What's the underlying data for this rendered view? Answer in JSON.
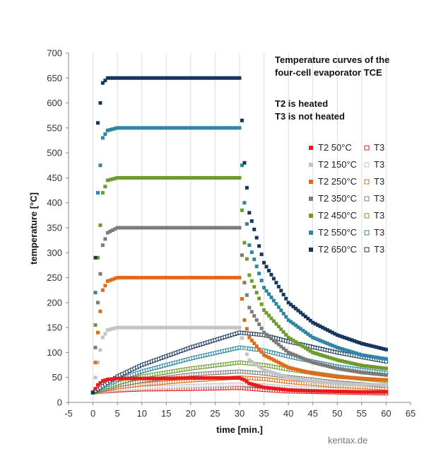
{
  "chart_data": {
    "type": "scatter",
    "xlabel": "time [min.]",
    "ylabel": "temperature [°C]",
    "xlim": [
      -5,
      65
    ],
    "ylim": [
      0,
      700
    ],
    "xticks": [
      -5,
      0,
      5,
      10,
      15,
      20,
      25,
      30,
      35,
      40,
      45,
      50,
      55,
      60,
      65
    ],
    "yticks": [
      0,
      50,
      100,
      150,
      200,
      250,
      300,
      350,
      400,
      450,
      500,
      550,
      600,
      650,
      700
    ],
    "grid": "vertical",
    "legend_position": "right",
    "annotations": [
      "Temperature curves of the",
      "four-cell evaporator TCE",
      "T2 is heated",
      "T3 is not heated"
    ],
    "credit": "kentax.de",
    "series": [
      {
        "name": "T2   50°C",
        "group": "T2",
        "marker": "filled",
        "color": "#e81a1a",
        "setpoint": 50,
        "start": 20,
        "end": 21,
        "x": [
          0,
          1,
          2,
          3,
          5,
          10,
          15,
          20,
          25,
          30,
          31,
          32,
          35,
          40,
          45,
          50,
          55,
          60
        ],
        "y": [
          20,
          35,
          43,
          46,
          48,
          48,
          48,
          49,
          49,
          49,
          45,
          38,
          30,
          25,
          23,
          22,
          21,
          21
        ]
      },
      {
        "name": "T3",
        "group": "T3",
        "marker": "open",
        "color": "#e81a1a",
        "x": [
          0,
          5,
          10,
          20,
          30,
          35,
          40,
          50,
          60
        ],
        "y": [
          20,
          24,
          26,
          27,
          29,
          25,
          22,
          20,
          18
        ]
      },
      {
        "name": "T2 150°C",
        "group": "T2",
        "marker": "filled",
        "color": "#c4c4c4",
        "setpoint": 150,
        "start": 20,
        "end": 35,
        "x": [
          0,
          1,
          2,
          3,
          5,
          10,
          15,
          20,
          25,
          30,
          31,
          32,
          35,
          40,
          45,
          50,
          55,
          60
        ],
        "y": [
          20,
          80,
          130,
          145,
          150,
          150,
          150,
          150,
          150,
          150,
          108,
          85,
          65,
          50,
          42,
          38,
          36,
          35
        ]
      },
      {
        "name": "T3",
        "group": "T3",
        "marker": "open",
        "color": "#c4c4c4",
        "x": [
          0,
          5,
          10,
          20,
          30,
          35,
          40,
          50,
          60
        ],
        "y": [
          20,
          26,
          29,
          33,
          36,
          34,
          30,
          26,
          23
        ]
      },
      {
        "name": "T2 250°C",
        "group": "T2",
        "marker": "filled",
        "color": "#e06b1a",
        "setpoint": 250,
        "start": 20,
        "end": 45,
        "x": [
          0,
          1,
          2,
          3,
          5,
          10,
          15,
          20,
          25,
          30,
          31,
          32,
          35,
          40,
          45,
          50,
          55,
          60
        ],
        "y": [
          20,
          140,
          225,
          243,
          250,
          250,
          250,
          250,
          250,
          250,
          165,
          130,
          95,
          70,
          58,
          51,
          48,
          45
        ]
      },
      {
        "name": "T3",
        "group": "T3",
        "marker": "open",
        "color": "#e06b1a",
        "x": [
          0,
          5,
          10,
          20,
          30,
          35,
          40,
          50,
          60
        ],
        "y": [
          20,
          30,
          36,
          44,
          50,
          47,
          41,
          33,
          28
        ]
      },
      {
        "name": "T2 350°C",
        "group": "T2",
        "marker": "filled",
        "color": "#7b7b7b",
        "setpoint": 350,
        "start": 20,
        "end": 55,
        "x": [
          0,
          1,
          2,
          3,
          5,
          10,
          15,
          20,
          25,
          30,
          31,
          32,
          35,
          40,
          45,
          50,
          55,
          60
        ],
        "y": [
          20,
          200,
          315,
          340,
          350,
          350,
          350,
          350,
          350,
          350,
          240,
          190,
          140,
          100,
          80,
          68,
          60,
          55
        ]
      },
      {
        "name": "T3",
        "group": "T3",
        "marker": "open",
        "color": "#7b7b7b",
        "x": [
          0,
          5,
          10,
          20,
          30,
          35,
          40,
          50,
          60
        ],
        "y": [
          20,
          34,
          43,
          56,
          62,
          58,
          51,
          40,
          33
        ]
      },
      {
        "name": "T2 450°C",
        "group": "T2",
        "marker": "filled",
        "color": "#6e9a2e",
        "setpoint": 450,
        "start": 20,
        "end": 68,
        "x": [
          0,
          1,
          2,
          3,
          5,
          10,
          15,
          20,
          25,
          30,
          31,
          32,
          35,
          40,
          45,
          50,
          55,
          60
        ],
        "y": [
          20,
          290,
          420,
          445,
          450,
          450,
          450,
          450,
          450,
          450,
          320,
          255,
          185,
          130,
          100,
          85,
          74,
          68
        ]
      },
      {
        "name": "T3",
        "group": "T3",
        "marker": "open",
        "color": "#6e9a2e",
        "x": [
          0,
          5,
          10,
          20,
          30,
          35,
          40,
          50,
          60
        ],
        "y": [
          20,
          38,
          52,
          68,
          80,
          75,
          66,
          52,
          43
        ]
      },
      {
        "name": "T2 550°C",
        "group": "T2",
        "marker": "filled",
        "color": "#2e86a0",
        "setpoint": 550,
        "start": 20,
        "end": 87,
        "x": [
          0,
          1,
          2,
          3,
          5,
          10,
          15,
          20,
          25,
          30,
          31,
          32,
          35,
          40,
          45,
          50,
          55,
          60
        ],
        "y": [
          20,
          420,
          530,
          545,
          550,
          550,
          550,
          550,
          550,
          550,
          400,
          315,
          230,
          165,
          130,
          110,
          95,
          87
        ]
      },
      {
        "name": "T3",
        "group": "T3",
        "marker": "open",
        "color": "#2e86a0",
        "x": [
          0,
          5,
          10,
          20,
          30,
          35,
          40,
          50,
          60
        ],
        "y": [
          20,
          45,
          62,
          88,
          110,
          104,
          92,
          72,
          59
        ]
      },
      {
        "name": "T2 650°C",
        "group": "T2",
        "marker": "filled",
        "color": "#17365d",
        "setpoint": 650,
        "start": 20,
        "end": 106,
        "x": [
          0,
          1,
          2,
          3,
          5,
          10,
          15,
          20,
          25,
          30,
          31,
          32,
          35,
          40,
          45,
          50,
          55,
          60
        ],
        "y": [
          20,
          560,
          640,
          650,
          650,
          650,
          650,
          650,
          650,
          650,
          480,
          380,
          280,
          200,
          160,
          135,
          118,
          106
        ]
      },
      {
        "name": "T3",
        "group": "T3",
        "marker": "open",
        "color": "#17365d",
        "x": [
          0,
          5,
          10,
          20,
          30,
          35,
          40,
          50,
          60
        ],
        "y": [
          20,
          52,
          75,
          110,
          140,
          135,
          122,
          100,
          82
        ]
      }
    ]
  }
}
